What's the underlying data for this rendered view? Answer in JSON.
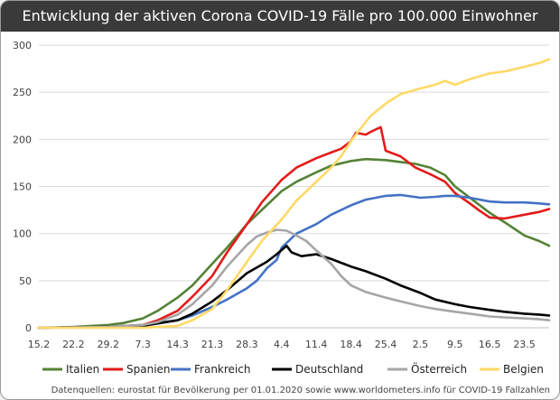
{
  "chart_data": {
    "type": "line",
    "title": "Entwicklung der aktiven Corona COVID-19 Fälle pro 100.000 Einwohner",
    "xlabel": "",
    "ylabel": "",
    "ylim": [
      0,
      300
    ],
    "yticks": [
      "0",
      "50",
      "100",
      "150",
      "200",
      "250",
      "300"
    ],
    "x_range": [
      0,
      103
    ],
    "xticks": [
      {
        "label": "15.2",
        "x": 0
      },
      {
        "label": "22.2",
        "x": 7
      },
      {
        "label": "29.2",
        "x": 14
      },
      {
        "label": "7.3",
        "x": 21
      },
      {
        "label": "14.3",
        "x": 28
      },
      {
        "label": "21.3",
        "x": 35
      },
      {
        "label": "28.3",
        "x": 42
      },
      {
        "label": "4.4",
        "x": 49
      },
      {
        "label": "11.4",
        "x": 56
      },
      {
        "label": "18.4",
        "x": 63
      },
      {
        "label": "25.4",
        "x": 70
      },
      {
        "label": "2.5",
        "x": 77
      },
      {
        "label": "9.5",
        "x": 84
      },
      {
        "label": "16.5",
        "x": 91
      },
      {
        "label": "23.5",
        "x": 98
      }
    ],
    "grid": true,
    "legend_position": "bottom",
    "series": [
      {
        "name": "Italien",
        "color": "#548235",
        "points": [
          [
            0,
            0
          ],
          [
            7,
            1
          ],
          [
            14,
            3
          ],
          [
            17,
            5
          ],
          [
            21,
            10
          ],
          [
            24,
            18
          ],
          [
            28,
            32
          ],
          [
            31,
            45
          ],
          [
            35,
            68
          ],
          [
            38,
            85
          ],
          [
            42,
            110
          ],
          [
            45,
            125
          ],
          [
            49,
            145
          ],
          [
            52,
            155
          ],
          [
            56,
            165
          ],
          [
            59,
            172
          ],
          [
            63,
            177
          ],
          [
            66,
            179
          ],
          [
            70,
            178
          ],
          [
            73,
            176
          ],
          [
            76,
            174
          ],
          [
            79,
            170
          ],
          [
            82,
            162
          ],
          [
            84,
            150
          ],
          [
            87,
            138
          ],
          [
            91,
            122
          ],
          [
            94,
            112
          ],
          [
            98,
            98
          ],
          [
            101,
            92
          ],
          [
            103,
            87
          ]
        ]
      },
      {
        "name": "Spanien",
        "color": "#e41a1a",
        "points": [
          [
            0,
            0
          ],
          [
            14,
            1
          ],
          [
            21,
            3
          ],
          [
            24,
            8
          ],
          [
            28,
            18
          ],
          [
            31,
            33
          ],
          [
            35,
            55
          ],
          [
            38,
            80
          ],
          [
            42,
            110
          ],
          [
            45,
            133
          ],
          [
            49,
            157
          ],
          [
            52,
            170
          ],
          [
            56,
            180
          ],
          [
            59,
            186
          ],
          [
            61,
            190
          ],
          [
            63,
            198
          ],
          [
            64,
            207
          ],
          [
            66,
            205
          ],
          [
            67,
            208
          ],
          [
            69,
            213
          ],
          [
            70,
            188
          ],
          [
            73,
            182
          ],
          [
            76,
            170
          ],
          [
            79,
            163
          ],
          [
            82,
            155
          ],
          [
            84,
            143
          ],
          [
            87,
            132
          ],
          [
            89,
            124
          ],
          [
            91,
            117
          ],
          [
            94,
            116
          ],
          [
            98,
            120
          ],
          [
            101,
            123
          ],
          [
            103,
            126
          ]
        ]
      },
      {
        "name": "Frankreich",
        "color": "#4472c4",
        "points": [
          [
            0,
            0
          ],
          [
            14,
            1
          ],
          [
            21,
            3
          ],
          [
            28,
            8
          ],
          [
            31,
            13
          ],
          [
            35,
            22
          ],
          [
            38,
            30
          ],
          [
            42,
            42
          ],
          [
            44,
            50
          ],
          [
            46,
            63
          ],
          [
            48,
            72
          ],
          [
            49,
            85
          ],
          [
            52,
            100
          ],
          [
            56,
            110
          ],
          [
            59,
            120
          ],
          [
            63,
            130
          ],
          [
            66,
            136
          ],
          [
            70,
            140
          ],
          [
            73,
            141
          ],
          [
            77,
            138
          ],
          [
            80,
            139
          ],
          [
            82,
            140
          ],
          [
            84,
            140
          ],
          [
            87,
            138
          ],
          [
            91,
            134
          ],
          [
            94,
            133
          ],
          [
            98,
            133
          ],
          [
            101,
            132
          ],
          [
            103,
            131
          ]
        ]
      },
      {
        "name": "Deutschland",
        "color": "#000000",
        "points": [
          [
            0,
            0
          ],
          [
            14,
            1
          ],
          [
            21,
            2
          ],
          [
            28,
            8
          ],
          [
            31,
            15
          ],
          [
            35,
            28
          ],
          [
            38,
            40
          ],
          [
            42,
            58
          ],
          [
            44,
            64
          ],
          [
            46,
            70
          ],
          [
            48,
            78
          ],
          [
            50,
            87
          ],
          [
            51,
            80
          ],
          [
            53,
            76
          ],
          [
            56,
            78
          ],
          [
            59,
            73
          ],
          [
            63,
            65
          ],
          [
            66,
            60
          ],
          [
            70,
            52
          ],
          [
            73,
            45
          ],
          [
            77,
            37
          ],
          [
            80,
            30
          ],
          [
            84,
            25
          ],
          [
            87,
            22
          ],
          [
            91,
            19
          ],
          [
            94,
            17
          ],
          [
            98,
            15
          ],
          [
            101,
            14
          ],
          [
            103,
            13
          ]
        ]
      },
      {
        "name": "Österreich",
        "color": "#a6a6a6",
        "points": [
          [
            0,
            0
          ],
          [
            14,
            1
          ],
          [
            21,
            3
          ],
          [
            24,
            6
          ],
          [
            28,
            14
          ],
          [
            31,
            25
          ],
          [
            35,
            45
          ],
          [
            38,
            65
          ],
          [
            42,
            88
          ],
          [
            44,
            97
          ],
          [
            46,
            101
          ],
          [
            48,
            104
          ],
          [
            50,
            103
          ],
          [
            52,
            98
          ],
          [
            54,
            92
          ],
          [
            56,
            82
          ],
          [
            59,
            68
          ],
          [
            61,
            55
          ],
          [
            63,
            45
          ],
          [
            66,
            38
          ],
          [
            70,
            32
          ],
          [
            73,
            28
          ],
          [
            77,
            23
          ],
          [
            80,
            20
          ],
          [
            84,
            17
          ],
          [
            87,
            15
          ],
          [
            91,
            12
          ],
          [
            94,
            11
          ],
          [
            98,
            10
          ],
          [
            101,
            9
          ],
          [
            103,
            8
          ]
        ]
      },
      {
        "name": "Belgien",
        "color": "#ffd966",
        "points": [
          [
            0,
            0
          ],
          [
            21,
            0
          ],
          [
            28,
            2
          ],
          [
            31,
            8
          ],
          [
            35,
            20
          ],
          [
            38,
            40
          ],
          [
            42,
            70
          ],
          [
            45,
            92
          ],
          [
            49,
            115
          ],
          [
            52,
            135
          ],
          [
            56,
            155
          ],
          [
            59,
            170
          ],
          [
            61,
            182
          ],
          [
            63,
            198
          ],
          [
            65,
            212
          ],
          [
            67,
            225
          ],
          [
            70,
            238
          ],
          [
            73,
            248
          ],
          [
            77,
            254
          ],
          [
            80,
            258
          ],
          [
            82,
            262
          ],
          [
            84,
            258
          ],
          [
            87,
            264
          ],
          [
            91,
            270
          ],
          [
            94,
            272
          ],
          [
            98,
            277
          ],
          [
            101,
            281
          ],
          [
            103,
            285
          ]
        ]
      }
    ]
  },
  "footer": {
    "source": "Datenquellen: eurostat für Bevölkerung per 01.01.2020 sowie www.worldometers.info für COVID-19 Fallzahlen"
  }
}
